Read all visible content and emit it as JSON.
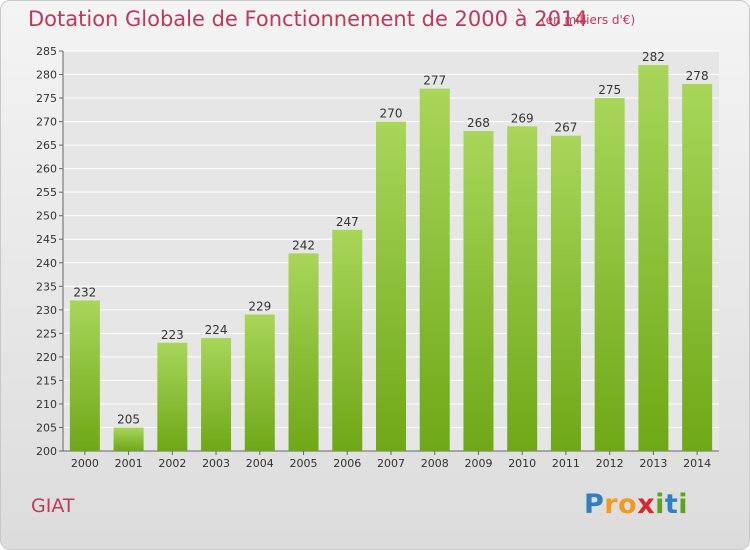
{
  "header": {
    "title": "Dotation Globale de Fonctionnement de 2000 à 2014",
    "subtitle": "(en milliers d'€)"
  },
  "footer": {
    "town": "GIAT",
    "logo_letters": [
      "P",
      "r",
      "o",
      "x",
      "i",
      "t",
      "i"
    ],
    "logo_colors": [
      "#2f7fc4",
      "#f39a1e",
      "#f39a1e",
      "#d8262e",
      "#5aa51e",
      "#2f7fc4",
      "#5aa51e"
    ]
  },
  "colors": {
    "title": "#c0395a",
    "bar_light": "#a8d65a",
    "bar_dark": "#6fa817",
    "grid": "#ffffff"
  },
  "chart_data": {
    "type": "bar",
    "categories": [
      "2000",
      "2001",
      "2002",
      "2003",
      "2004",
      "2005",
      "2006",
      "2007",
      "2008",
      "2009",
      "2010",
      "2011",
      "2012",
      "2013",
      "2014"
    ],
    "values": [
      232,
      205,
      223,
      224,
      229,
      242,
      247,
      270,
      277,
      268,
      269,
      267,
      275,
      282,
      278
    ],
    "title": "Dotation Globale de Fonctionnement de 2000 à 2014",
    "subtitle": "(en milliers d'€)",
    "xlabel": "",
    "ylabel": "",
    "ylim": [
      200,
      285
    ],
    "yticks": [
      200,
      205,
      210,
      215,
      220,
      225,
      230,
      235,
      240,
      245,
      250,
      255,
      260,
      265,
      270,
      275,
      280,
      285
    ],
    "grid": true,
    "legend": "none"
  }
}
